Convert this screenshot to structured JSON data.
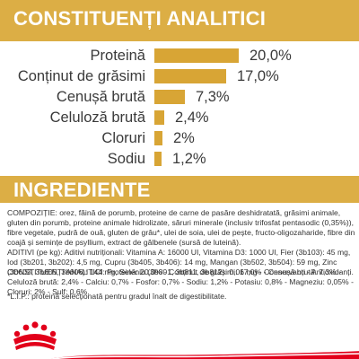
{
  "headings": {
    "analytical": "CONSTITUENȚI ANALITICI",
    "ingredients": "INGREDIENTE"
  },
  "nutrients": [
    {
      "label": "Proteină",
      "value_text": "20,0%",
      "value": 20.0
    },
    {
      "label": "Conținut de grăsimi",
      "value_text": "17,0%",
      "value": 17.0
    },
    {
      "label": "Cenușă brută",
      "value_text": "7,3%",
      "value": 7.3
    },
    {
      "label": "Celuloză brută",
      "value_text": "2,4%",
      "value": 2.4
    },
    {
      "label": "Cloruri",
      "value_text": "2%",
      "value": 2.0
    },
    {
      "label": "Sodiu",
      "value_text": "1,2%",
      "value": 1.2
    }
  ],
  "ingredients_text": {
    "composition": "COMPOZIȚIE: orez, făină de porumb, proteine de carne de pasăre deshidratată, grăsimi animale, gluten din porumb, proteine animale hidrolizate, săruri minerale (inclusiv trifosfat pentasodic (0,35%)), fibre vegetale, pudră de ouă, gluten de grâu*, ulei de soia, ulei de pește, fructo-oligozaharide, fibre din coajă și semințe de psyllium, extract de gălbenele (sursă de luteină).",
    "additives": "ADITIVI (pe kg): Aditivi nutriționali: Vitamina A: 16000 UI, Vitamina D3: 1000 UI, Fier (3b103): 45 mg, Iod (3b201, 3b202): 4,5 mg, Cupru (3b405, 3b406): 14 mg, Mangan (3b502, 3b504): 59 mg, Zinc (3b603, 3b605, 3b606): 144 mg, Seleniu (3b801, 3b811, 3b812): 0,06 mg - Conservanți - Antioxidanți.",
    "analytical": "CONSTITUENȚI ANALITICI: Proteină: 20,0% - Conținut de grăsimi: 17,0% - Cenușă brută: 7,3% - Celuloză brută: 2,4% - Calciu: 0,7% - Fosfor: 0,7% - Sodiu: 1,2% - Potasiu: 0,8% - Magneziu: 0,05% - Cloruri: 2% - Sulf: 0,6%.",
    "footnote": "*L.I.P.: proteină selecționată pentru gradul înalt de digestibilitate."
  },
  "brand": {
    "logo_icon": "royal-canin-crown-logo",
    "accent_color": "#dcae45",
    "bar_color": "#d8a535",
    "ribbon_color": "#e2001a"
  }
}
